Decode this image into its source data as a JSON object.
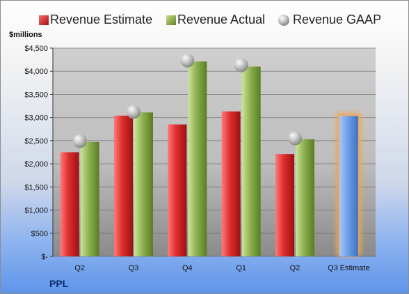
{
  "chart_data": {
    "type": "bar",
    "ylabel": "$millions",
    "company": "PPL",
    "categories": [
      "Q2",
      "Q3",
      "Q4",
      "Q1",
      "Q2",
      "Q3 Estimate"
    ],
    "ylim": [
      0,
      4500
    ],
    "yticks": [
      0,
      500,
      1000,
      1500,
      2000,
      2500,
      3000,
      3500,
      4000,
      4500
    ],
    "ytick_labels": [
      "$-",
      "$500",
      "$1,000",
      "$1,500",
      "$2,000",
      "$2,500",
      "$3,000",
      "$3,500",
      "$4,000",
      "$4,500"
    ],
    "grid": true,
    "legend_placement": "top",
    "series": [
      {
        "name": "Revenue Estimate",
        "kind": "bar",
        "color": "#d42a2a",
        "values": [
          2250,
          3040,
          2850,
          3130,
          2210,
          null
        ]
      },
      {
        "name": "Revenue Actual",
        "kind": "bar",
        "color": "#8db050",
        "values": [
          2470,
          3110,
          4210,
          4100,
          2530,
          null
        ]
      },
      {
        "name": "Revenue GAAP",
        "kind": "marker",
        "color": "#b8b8b8",
        "values": [
          2490,
          3120,
          4230,
          4130,
          2550,
          null
        ]
      },
      {
        "name": "",
        "kind": "projected-bar",
        "color": "#6f9fe6",
        "highlight": "#f0a550",
        "values": [
          null,
          null,
          null,
          null,
          null,
          3030
        ]
      }
    ]
  }
}
